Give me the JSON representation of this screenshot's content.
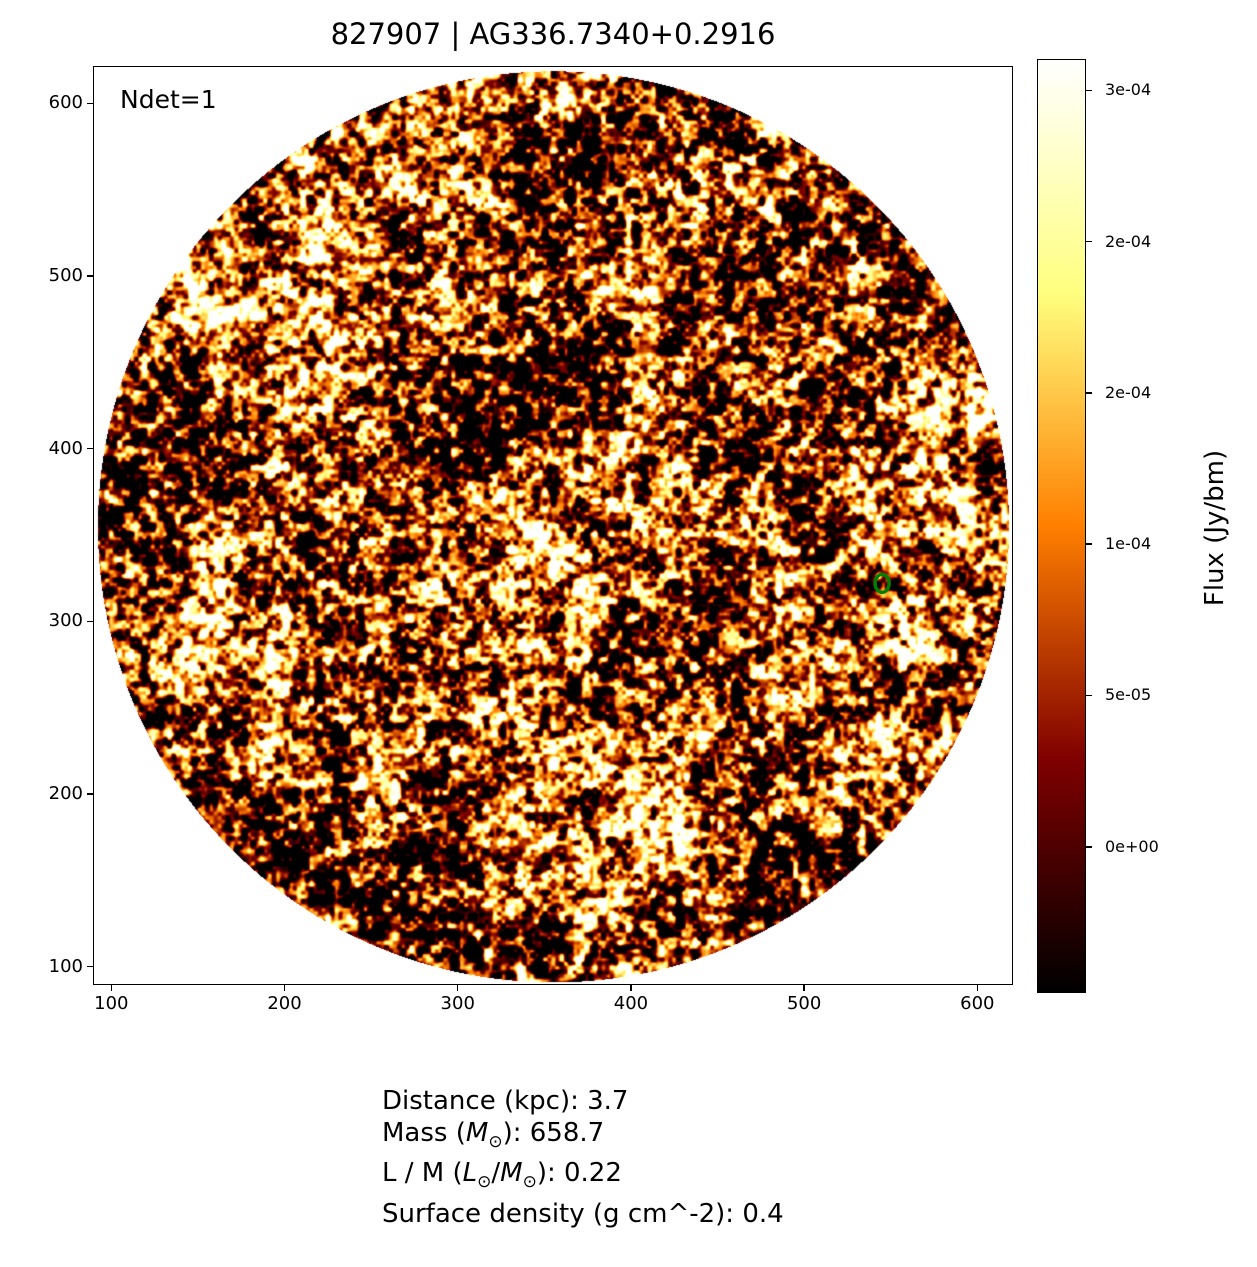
{
  "chart_data": {
    "type": "heatmap",
    "title": "827907 | AG336.7340+0.2916",
    "annotation": "Ndet=1",
    "xlim": [
      90,
      620
    ],
    "ylim": [
      90,
      621
    ],
    "x_ticks": [
      100,
      200,
      300,
      400,
      500,
      600
    ],
    "y_ticks": [
      100,
      200,
      300,
      400,
      500,
      600
    ],
    "colormap": "afmhot",
    "colorbar": {
      "label": "Flux (Jy/bm)",
      "vmin": -4.8e-05,
      "vmax": 0.00026,
      "ticks": [
        0,
        5e-05,
        0.0001,
        0.00015,
        0.0002,
        0.00025
      ],
      "tick_labels": [
        "0e+00",
        "5e-05",
        "1e-04",
        "2e-04",
        "2e-04",
        "3e-04"
      ]
    },
    "field_footprint": {
      "shape": "circle",
      "center": [
        355,
        355
      ],
      "radius": 263
    },
    "marker": {
      "shape": "ellipse",
      "x": 545,
      "y": 322,
      "color": "#008000"
    }
  },
  "info": {
    "distance": "Distance (kpc): 3.7",
    "mass_prefix": "Mass (",
    "mass_sym": "M",
    "mass_suffix": "): 658.7",
    "lm_prefix": "L / M (",
    "lm_sym1": "L",
    "lm_sym2": "M",
    "lm_suffix": "): 0.22",
    "surface_density": "Surface density (g cm^-2): 0.4",
    "sun_symbol": "⊙"
  }
}
